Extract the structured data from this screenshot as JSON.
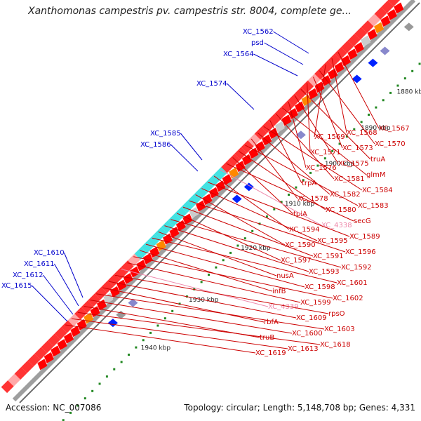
{
  "title": "Xanthomonas campestris pv. campestris str. 8004, complete ge...",
  "footer": {
    "accession": "Accession: NC_007086",
    "summary": "Topology: circular; Length: 5,148,708 bp; Genes: 4,331"
  },
  "ticks": [
    "1880 kbp",
    "1890 kbp",
    "1900 kbp",
    "1910 kbp",
    "1920 kbp",
    "1930 kbp",
    "1940 kbp"
  ],
  "colors": {
    "backbone": "#9e9e9e",
    "forward_label": "#0000cc",
    "reverse_label": "#cc0000",
    "pseudo_label": "#ee88aa",
    "cds_reverse": "#ff0000",
    "cds_forward": "#0022ff",
    "gc_skew": "#22aa22"
  },
  "forward_labels": [
    "XC_1562",
    "psd",
    "XC_1564",
    "XC_1574",
    "XC_1585",
    "XC_1586",
    "XC_1610",
    "XC_1611",
    "XC_1612",
    "XC_1615"
  ],
  "reverse_labels": [
    "XC_1567",
    "XC_1568",
    "XC_1569",
    "XC_1570",
    "XC_1573",
    "XC_1571",
    "truA",
    "XC_1575",
    "XC_1576",
    "glmM",
    "XC_1581",
    "trpA",
    "XC_1584",
    "XC_1582",
    "XC_1578",
    "XC_1583",
    "XC_1580",
    "tpiA",
    "secG",
    "XC_4338",
    "XC_1594",
    "XC_1589",
    "XC_1595",
    "XC_1590",
    "XC_1596",
    "XC_1591",
    "XC_1597",
    "XC_1592",
    "XC_1593",
    "nusA",
    "XC_1601",
    "XC_1598",
    "infB",
    "XC_1602",
    "XC_1599",
    "XC_4339",
    "rpsO",
    "XC_1609",
    "rbfA",
    "XC_1603",
    "XC_1600",
    "truB",
    "XC_1618",
    "XC_1613",
    "XC_1619"
  ]
}
